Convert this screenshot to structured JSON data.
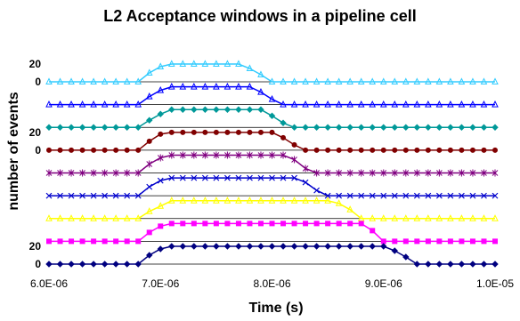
{
  "chart_data": {
    "type": "line",
    "title": "L2 Acceptance windows in a pipeline cell",
    "xlabel": "Time (s)",
    "ylabel": "number of events",
    "xlim": [
      6e-06,
      1e-05
    ],
    "x_ticks": [
      6e-06,
      7e-06,
      8e-06,
      9e-06,
      1e-05
    ],
    "x_tick_labels": [
      "6.0E-06",
      "7.0E-06",
      "8.0E-06",
      "9.0E-06",
      "1.0E-05"
    ],
    "grid": false,
    "legend": false,
    "x": [
      6e-06,
      6.1e-06,
      6.2e-06,
      6.3e-06,
      6.4e-06,
      6.5e-06,
      6.6e-06,
      6.7e-06,
      6.8e-06,
      6.9e-06,
      7e-06,
      7.1e-06,
      7.2e-06,
      7.3e-06,
      7.4e-06,
      7.5e-06,
      7.6e-06,
      7.7e-06,
      7.8e-06,
      7.9e-06,
      8e-06,
      8.1e-06,
      8.2e-06,
      8.3e-06,
      8.4e-06,
      8.5e-06,
      8.6e-06,
      8.7e-06,
      8.8e-06,
      8.9e-06,
      9e-06,
      9.1e-06,
      9.2e-06,
      9.3e-06,
      9.4e-06,
      9.5e-06,
      9.6e-06,
      9.7e-06,
      9.8e-06,
      9.9e-06,
      1e-05
    ],
    "series": [
      {
        "color": "#33CCFF",
        "marker": "triangle",
        "values": [
          0,
          0,
          0,
          0,
          0,
          0,
          0,
          0,
          0,
          10,
          17,
          20,
          20,
          20,
          20,
          20,
          20,
          20,
          15,
          8,
          0,
          0,
          0,
          0,
          0,
          0,
          0,
          0,
          0,
          0,
          0,
          0,
          0,
          0,
          0,
          0,
          0,
          0,
          0,
          0,
          0
        ]
      },
      {
        "color": "#0000FF",
        "marker": "triangle",
        "values": [
          0,
          0,
          0,
          0,
          0,
          0,
          0,
          0,
          0,
          9,
          16,
          20,
          20,
          20,
          20,
          20,
          20,
          20,
          20,
          14,
          6,
          0,
          0,
          0,
          0,
          0,
          0,
          0,
          0,
          0,
          0,
          0,
          0,
          0,
          0,
          0,
          0,
          0,
          0,
          0,
          0
        ]
      },
      {
        "color": "#009999",
        "marker": "diamond",
        "values": [
          0,
          0,
          0,
          0,
          0,
          0,
          0,
          0,
          0,
          8,
          15,
          20,
          20,
          20,
          20,
          20,
          20,
          20,
          20,
          20,
          13,
          5,
          0,
          0,
          0,
          0,
          0,
          0,
          0,
          0,
          0,
          0,
          0,
          0,
          0,
          0,
          0,
          0,
          0,
          0,
          0
        ]
      },
      {
        "color": "#800000",
        "marker": "circle",
        "values": [
          0,
          0,
          0,
          0,
          0,
          0,
          0,
          0,
          0,
          10,
          18,
          20,
          20,
          20,
          20,
          20,
          20,
          20,
          20,
          20,
          20,
          14,
          6,
          0,
          0,
          0,
          0,
          0,
          0,
          0,
          0,
          0,
          0,
          0,
          0,
          0,
          0,
          0,
          0,
          0,
          0
        ]
      },
      {
        "color": "#800080",
        "marker": "star",
        "values": [
          0,
          0,
          0,
          0,
          0,
          0,
          0,
          0,
          0,
          10,
          17,
          20,
          20,
          20,
          20,
          20,
          20,
          20,
          20,
          20,
          20,
          20,
          15,
          5,
          0,
          0,
          0,
          0,
          0,
          0,
          0,
          0,
          0,
          0,
          0,
          0,
          0,
          0,
          0,
          0,
          0
        ]
      },
      {
        "color": "#0000CC",
        "marker": "x",
        "values": [
          0,
          0,
          0,
          0,
          0,
          0,
          0,
          0,
          0,
          10,
          17,
          20,
          20,
          20,
          20,
          20,
          20,
          20,
          20,
          20,
          20,
          20,
          20,
          15,
          6,
          0,
          0,
          0,
          0,
          0,
          0,
          0,
          0,
          0,
          0,
          0,
          0,
          0,
          0,
          0,
          0
        ]
      },
      {
        "color": "#FFFF00",
        "marker": "triangle",
        "values": [
          0,
          0,
          0,
          0,
          0,
          0,
          0,
          0,
          0,
          8,
          14,
          20,
          20,
          20,
          20,
          20,
          20,
          20,
          20,
          20,
          20,
          20,
          20,
          20,
          20,
          20,
          17,
          10,
          0,
          0,
          0,
          0,
          0,
          0,
          0,
          0,
          0,
          0,
          0,
          0,
          0
        ]
      },
      {
        "color": "#FF00FF",
        "marker": "square",
        "values": [
          0,
          0,
          0,
          0,
          0,
          0,
          0,
          0,
          0,
          10,
          17,
          20,
          20,
          20,
          20,
          20,
          20,
          20,
          20,
          20,
          20,
          20,
          20,
          20,
          20,
          20,
          20,
          20,
          20,
          12,
          0,
          0,
          0,
          0,
          0,
          0,
          0,
          0,
          0,
          0,
          0
        ]
      },
      {
        "color": "#000080",
        "marker": "diamond",
        "values": [
          0,
          0,
          0,
          0,
          0,
          0,
          0,
          0,
          0,
          10,
          17,
          20,
          20,
          20,
          20,
          20,
          20,
          20,
          20,
          20,
          20,
          20,
          20,
          20,
          20,
          20,
          20,
          20,
          20,
          20,
          20,
          15,
          8,
          0,
          0,
          0,
          0,
          0,
          0,
          0,
          0
        ]
      }
    ],
    "annotations": [
      {
        "text": "20",
        "row": 0,
        "level": 20
      },
      {
        "text": "0",
        "row": 0,
        "level": 0
      },
      {
        "text": "20",
        "row": 3,
        "level": 20
      },
      {
        "text": "0",
        "row": 3,
        "level": 0
      },
      {
        "text": "20",
        "row": 8,
        "level": 20
      },
      {
        "text": "0",
        "row": 8,
        "level": 0
      }
    ]
  }
}
